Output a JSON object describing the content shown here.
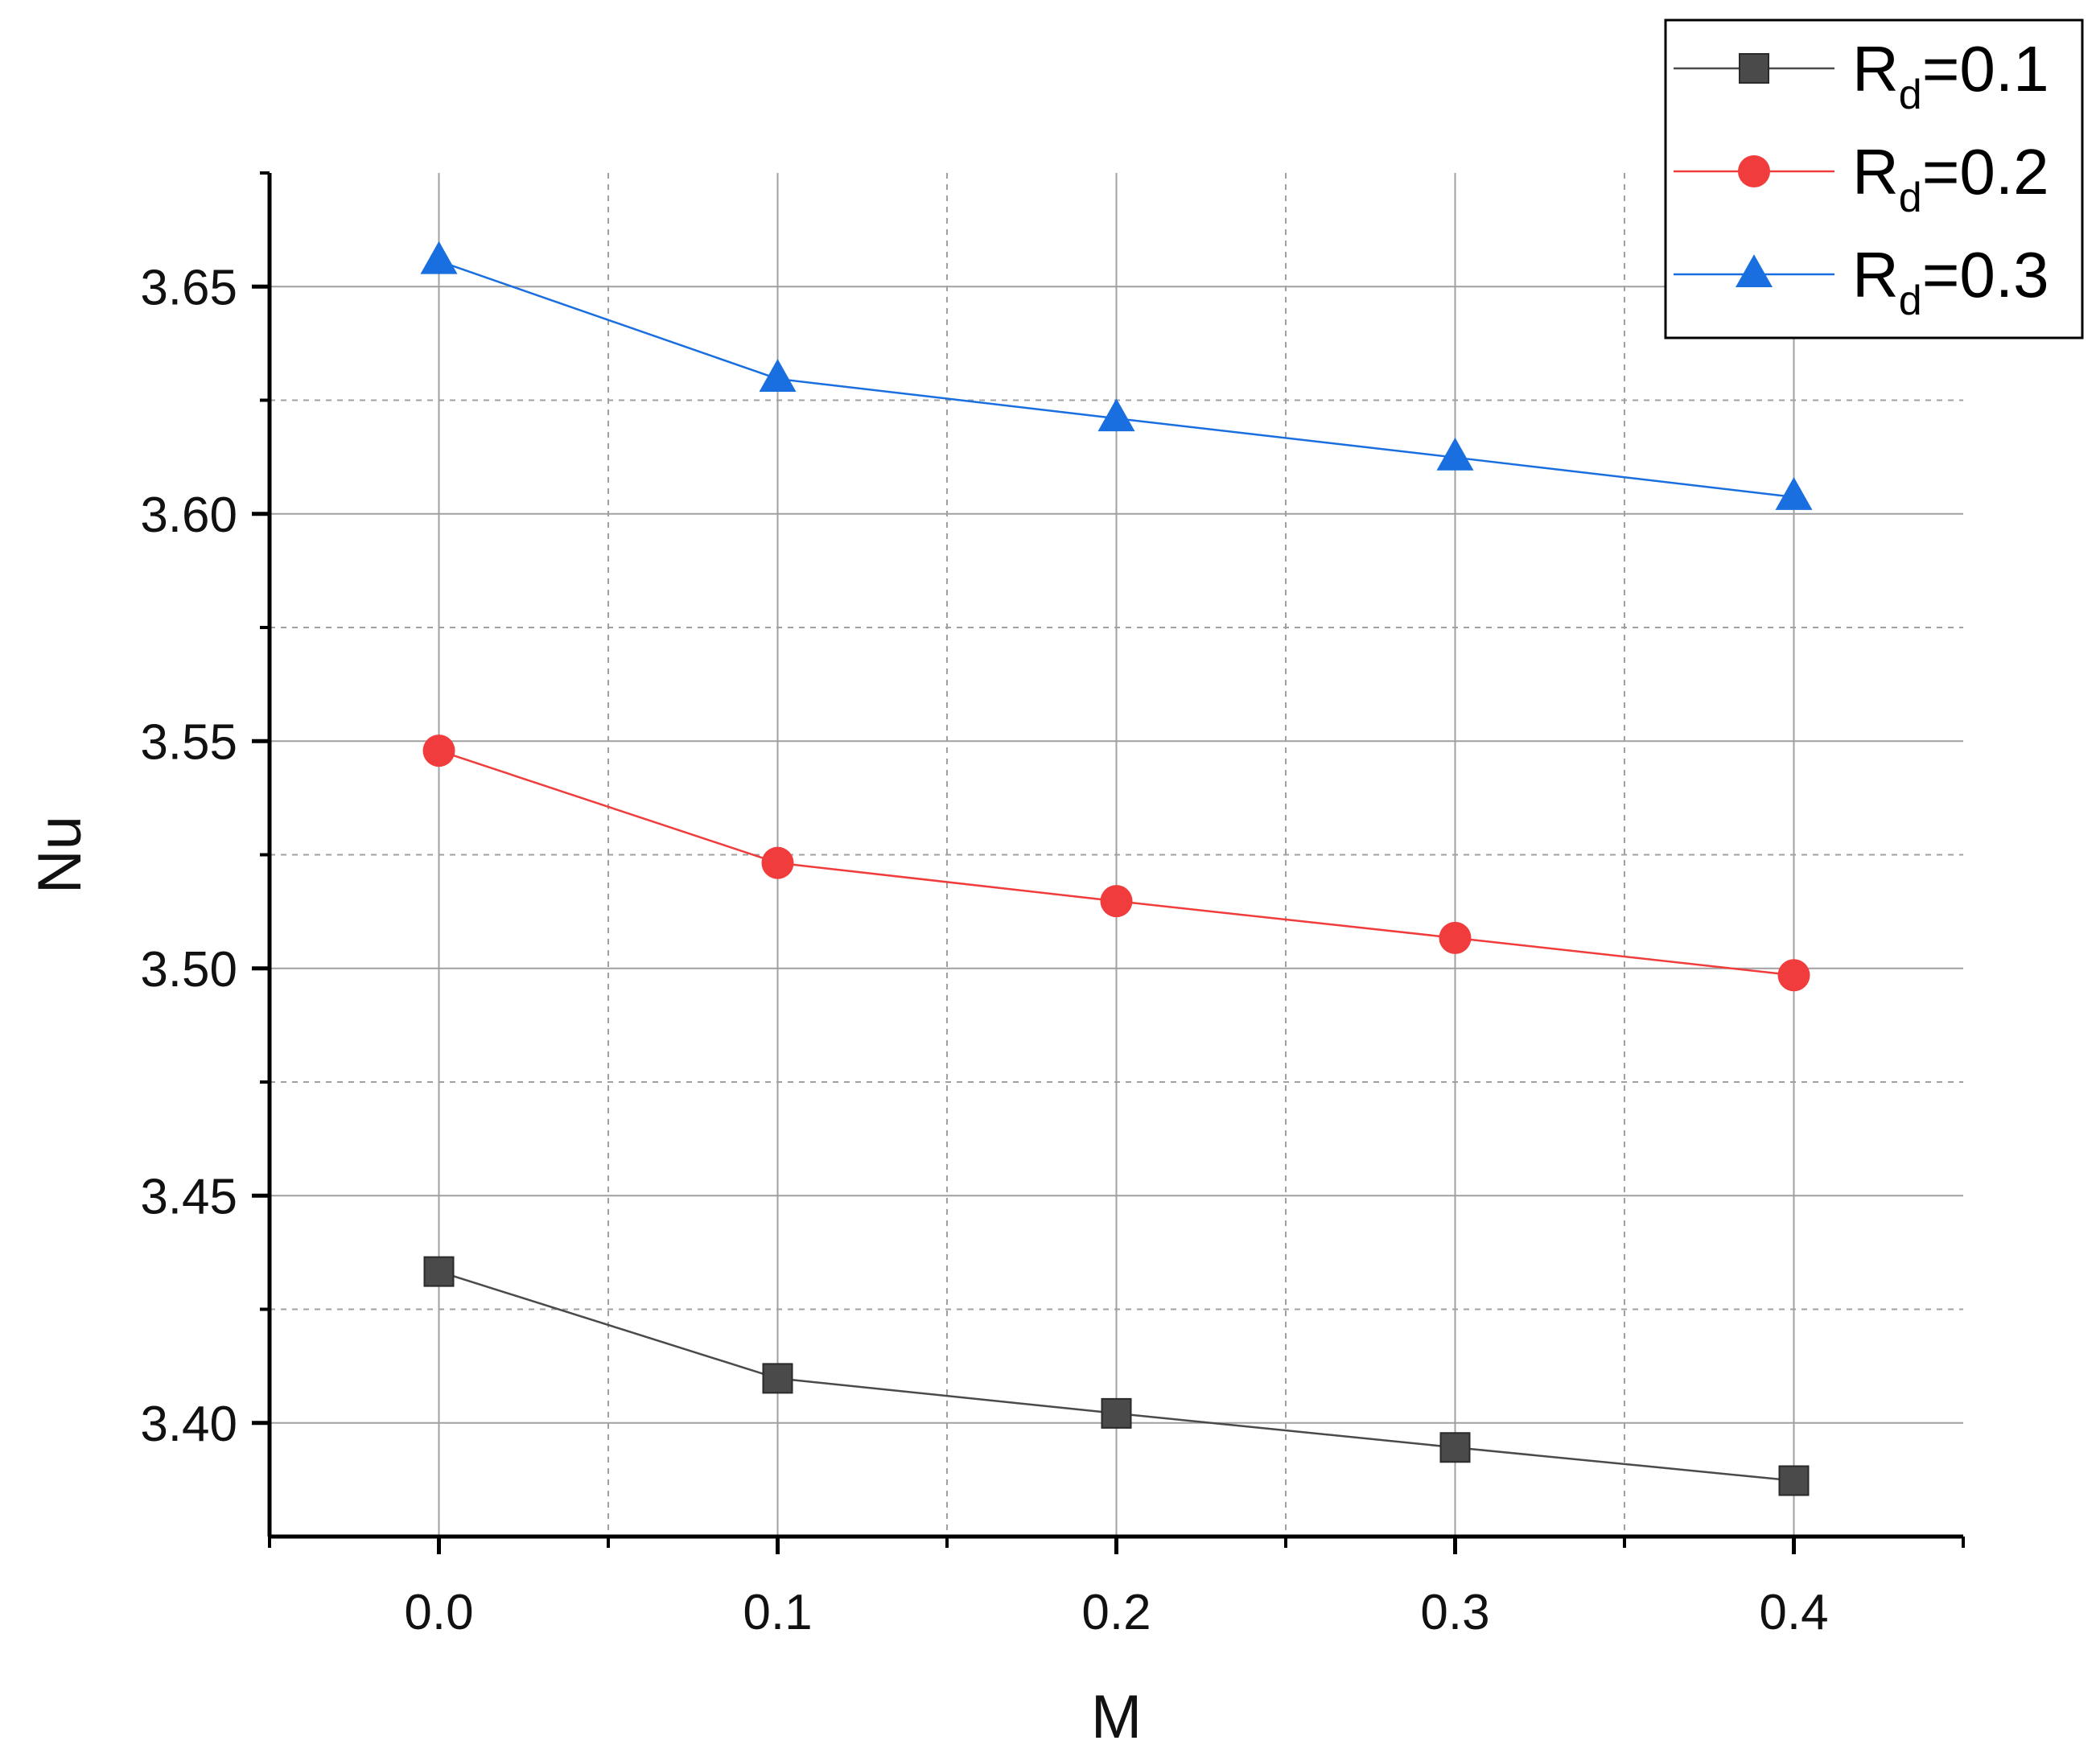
{
  "chart_data": {
    "type": "line",
    "title": "",
    "xlabel": "M",
    "ylabel": "Nu",
    "x": [
      0.0,
      0.1,
      0.2,
      0.3,
      0.4
    ],
    "x_tick_labels": [
      "0.0",
      "0.1",
      "0.2",
      "0.3",
      "0.4"
    ],
    "y_tick_values": [
      3.4,
      3.45,
      3.5,
      3.55,
      3.6,
      3.65
    ],
    "y_tick_labels": [
      "3.40",
      "3.45",
      "3.50",
      "3.55",
      "3.60",
      "3.65"
    ],
    "xlim": [
      -0.05,
      0.45
    ],
    "ylim": [
      3.375,
      3.675
    ],
    "grid": true,
    "legend_position": "top-right",
    "series": [
      {
        "name": "Rd=0.1",
        "label_main": "R",
        "label_sub": "d",
        "label_value": "=0.1",
        "marker": "square",
        "color": "#4a4a4a",
        "values": [
          3.4333,
          3.4098,
          3.4021,
          3.3946,
          3.3873
        ]
      },
      {
        "name": "Rd=0.2",
        "label_main": "R",
        "label_sub": "d",
        "label_value": "=0.2",
        "marker": "circle",
        "color": "#f03c3c",
        "values": [
          3.5479,
          3.5232,
          3.5148,
          3.5067,
          3.4985
        ]
      },
      {
        "name": "Rd=0.3",
        "label_main": "R",
        "label_sub": "d",
        "label_value": "=0.3",
        "marker": "triangle",
        "color": "#1a6fe0",
        "values": [
          3.6556,
          3.6297,
          3.621,
          3.6124,
          3.6037
        ]
      }
    ]
  },
  "colors": {
    "axis": "#000000",
    "grid_major": "#a0a0a0",
    "grid_minor": "#a0a0a0"
  }
}
